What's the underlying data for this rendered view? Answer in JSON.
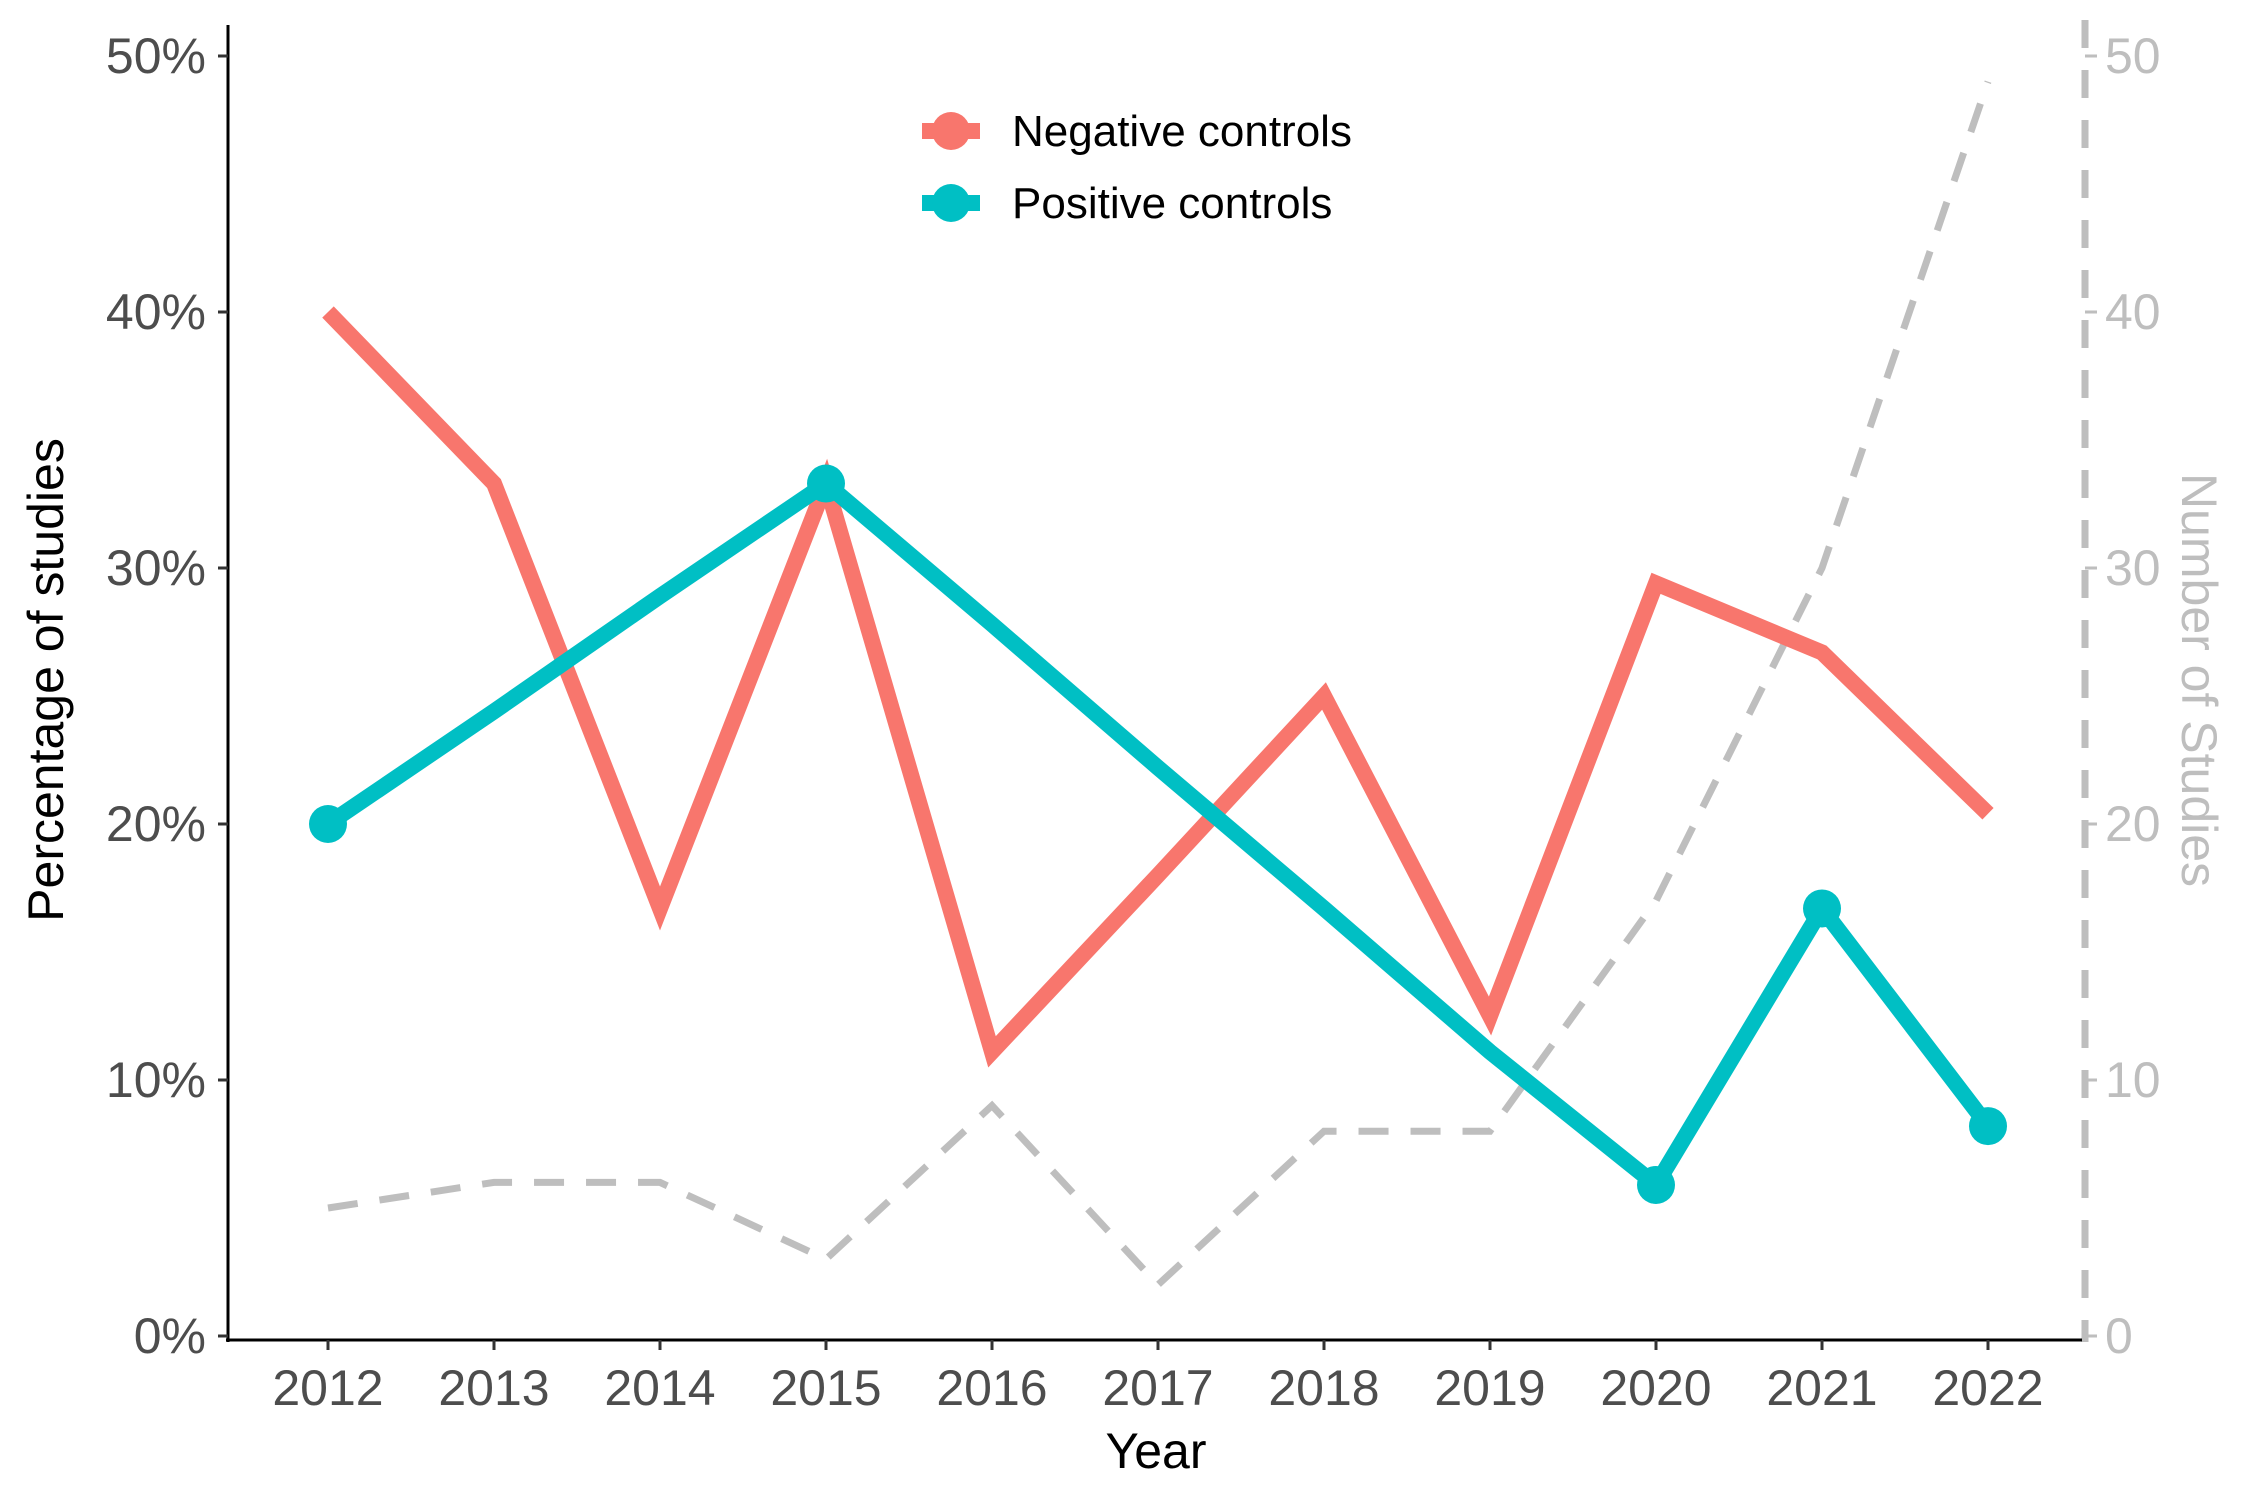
{
  "chart_data": {
    "type": "line",
    "categories": [
      "2012",
      "2013",
      "2014",
      "2015",
      "2016",
      "2017",
      "2018",
      "2019",
      "2020",
      "2021",
      "2022"
    ],
    "series": [
      {
        "name": "Negative controls",
        "axis": "left",
        "color": "#F8766D",
        "markers": false,
        "values": [
          40.0,
          33.3,
          16.7,
          33.3,
          11.1,
          18.0,
          25.0,
          12.5,
          29.4,
          26.7,
          20.4
        ]
      },
      {
        "name": "Positive controls",
        "axis": "left",
        "color": "#00BFC4",
        "markers": true,
        "marker_years": [
          "2012",
          "2015",
          "2020",
          "2021",
          "2022"
        ],
        "values": [
          20.0,
          24.4,
          28.9,
          33.3,
          27.8,
          22.2,
          16.7,
          11.1,
          5.9,
          16.7,
          8.2
        ]
      },
      {
        "axis": "right",
        "color": "#BEBEBE",
        "dashed": true,
        "markers": false,
        "values": [
          5,
          6,
          6,
          3,
          9,
          2,
          8,
          8,
          17,
          30,
          49
        ]
      }
    ],
    "xlabel": "Year",
    "ylabel": "Percentage of studies",
    "y2label": "Number of Studies",
    "ylim": [
      0,
      50
    ],
    "y2lim": [
      0,
      50
    ],
    "yticks": [
      "0%",
      "10%",
      "20%",
      "30%",
      "40%",
      "50%"
    ],
    "y2ticks": [
      "0",
      "10",
      "20",
      "30",
      "40",
      "50"
    ],
    "grid": false,
    "legend_position": "top-center",
    "legend": [
      "Negative controls",
      "Positive controls"
    ]
  }
}
